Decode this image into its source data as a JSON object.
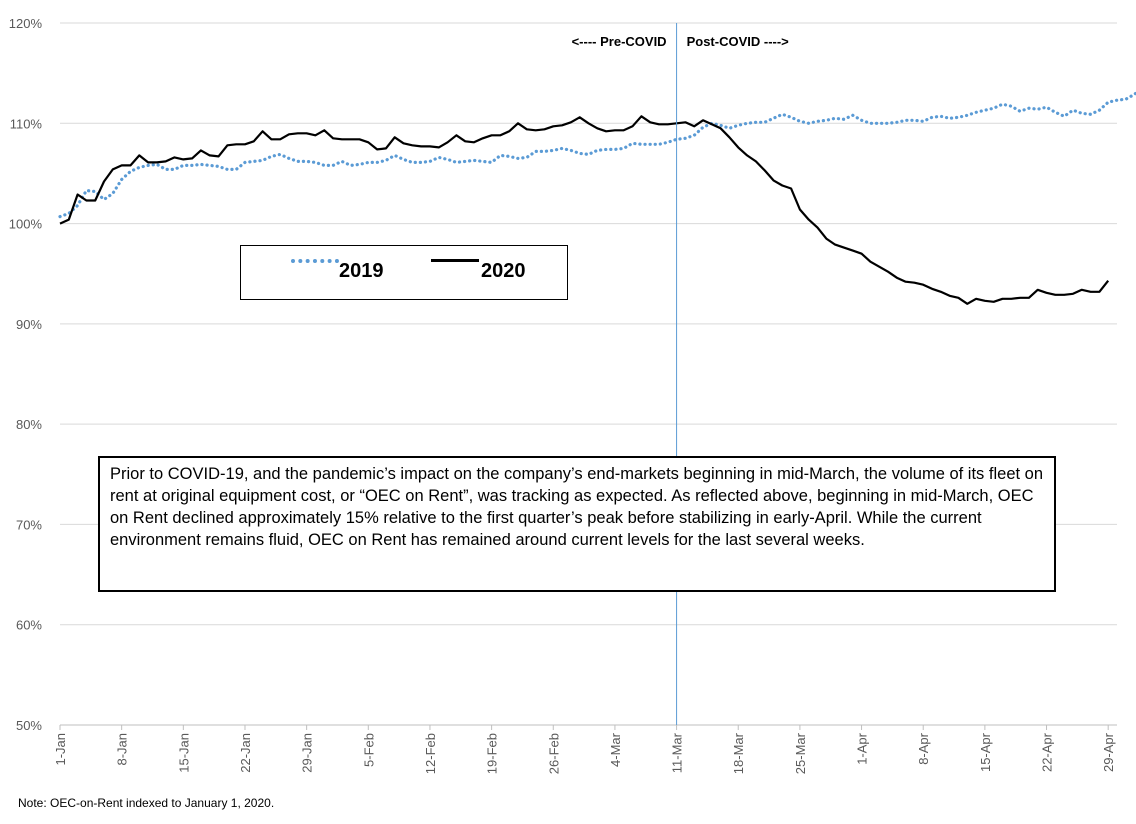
{
  "chart_data": {
    "type": "line",
    "title": "",
    "xlabel": "",
    "ylabel": "",
    "ylim": [
      50,
      120
    ],
    "yticks": [
      "50%",
      "60%",
      "70%",
      "80%",
      "90%",
      "100%",
      "110%",
      "120%"
    ],
    "xtick_labels": [
      "1-Jan",
      "8-Jan",
      "15-Jan",
      "22-Jan",
      "29-Jan",
      "5-Feb",
      "12-Feb",
      "19-Feb",
      "26-Feb",
      "4-Mar",
      "11-Mar",
      "18-Mar",
      "25-Mar",
      "1-Apr",
      "8-Apr",
      "15-Apr",
      "22-Apr",
      "29-Apr"
    ],
    "grid": true,
    "legend_position": "upper-left",
    "x_days_note": "values are daily from 1-Jan",
    "series": [
      {
        "name": "2019",
        "style": "dotted",
        "color": "#5B9BD5",
        "values": [
          100.7,
          101.0,
          101.8,
          103.3,
          103.2,
          102.4,
          103.0,
          104.4,
          105.2,
          105.6,
          105.8,
          105.9,
          105.4,
          105.4,
          105.8,
          105.8,
          105.9,
          105.8,
          105.7,
          105.4,
          105.4,
          106.1,
          106.2,
          106.3,
          106.7,
          106.9,
          106.5,
          106.2,
          106.2,
          106.1,
          105.8,
          105.8,
          106.2,
          105.8,
          105.9,
          106.1,
          106.1,
          106.3,
          106.8,
          106.4,
          106.1,
          106.1,
          106.2,
          106.6,
          106.4,
          106.1,
          106.2,
          106.3,
          106.2,
          106.1,
          106.8,
          106.7,
          106.5,
          106.6,
          107.2,
          107.2,
          107.3,
          107.5,
          107.3,
          107.0,
          106.9,
          107.3,
          107.4,
          107.4,
          107.5,
          108.0,
          107.9,
          107.9,
          107.9,
          108.1,
          108.4,
          108.5,
          108.8,
          109.6,
          110.0,
          109.8,
          109.5,
          109.8,
          110.0,
          110.1,
          110.1,
          110.5,
          110.9,
          110.6,
          110.2,
          110.0,
          110.2,
          110.3,
          110.5,
          110.4,
          110.8,
          110.3,
          110.0,
          110.0,
          110.0,
          110.1,
          110.3,
          110.3,
          110.2,
          110.6,
          110.7,
          110.5,
          110.6,
          110.8,
          111.1,
          111.3,
          111.5,
          111.9,
          111.7,
          111.2,
          111.5,
          111.4,
          111.6,
          111.1,
          110.7,
          111.3,
          111.0,
          110.9,
          111.3,
          112.1,
          112.3,
          112.4,
          112.9,
          113.6,
          113.2,
          112.9,
          112.8
        ]
      },
      {
        "name": "2020",
        "style": "solid",
        "color": "#000000",
        "values": [
          100.0,
          100.4,
          102.9,
          102.3,
          102.3,
          104.2,
          105.4,
          105.8,
          105.8,
          106.8,
          106.1,
          106.1,
          106.2,
          106.6,
          106.4,
          106.5,
          107.3,
          106.8,
          106.7,
          107.8,
          107.9,
          107.9,
          108.2,
          109.2,
          108.4,
          108.4,
          108.9,
          109.0,
          109.0,
          108.8,
          109.3,
          108.5,
          108.4,
          108.4,
          108.4,
          108.1,
          107.4,
          107.5,
          108.6,
          108.0,
          107.8,
          107.7,
          107.7,
          107.6,
          108.1,
          108.8,
          108.2,
          108.1,
          108.5,
          108.8,
          108.8,
          109.2,
          110.0,
          109.4,
          109.3,
          109.4,
          109.7,
          109.8,
          110.1,
          110.6,
          110.0,
          109.5,
          109.2,
          109.3,
          109.3,
          109.7,
          110.7,
          110.1,
          109.9,
          109.9,
          110.0,
          110.1,
          109.7,
          110.3,
          109.9,
          109.5,
          108.6,
          107.6,
          106.8,
          106.2,
          105.3,
          104.3,
          103.8,
          103.5,
          101.4,
          100.4,
          99.6,
          98.5,
          97.9,
          97.6,
          97.3,
          97.0,
          96.2,
          95.7,
          95.2,
          94.6,
          94.2,
          94.1,
          93.9,
          93.5,
          93.2,
          92.8,
          92.6,
          92.0,
          92.5,
          92.3,
          92.2,
          92.5,
          92.5,
          92.6,
          92.6,
          93.4,
          93.1,
          92.9,
          92.9,
          93.0,
          93.4,
          93.2,
          93.2,
          94.3
        ]
      }
    ],
    "annotations": {
      "pre_covid": "<---- Pre-COVID",
      "post_covid": "Post-COVID ---->",
      "divider_x": "11-Mar"
    }
  },
  "legend": {
    "item_2019": "2019",
    "item_2020": "2020"
  },
  "note_box": {
    "text": "Prior to COVID-19, and the pandemic’s impact on the company’s end-markets beginning in mid-March, the volume of its fleet on rent at original equipment cost, or “OEC on Rent”, was tracking as expected. As reflected above, beginning in mid-March, OEC on Rent declined approximately 15% relative to the first quarter’s peak before stabilizing in early-April. While the current environment remains fluid, OEC on Rent has remained around current levels for the last several weeks."
  },
  "footnote": "Note: OEC-on-Rent indexed to January 1, 2020."
}
